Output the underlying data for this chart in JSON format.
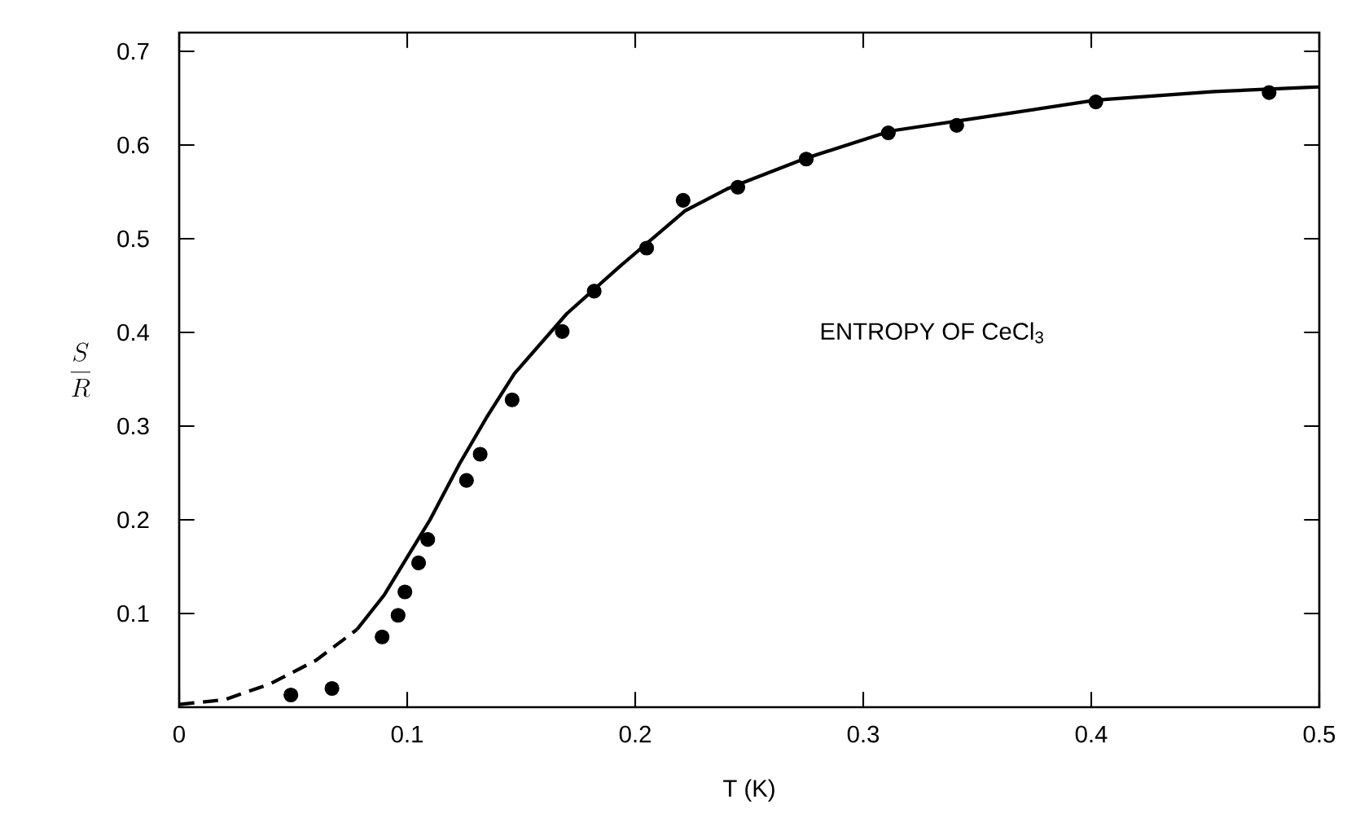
{
  "chart_data": {
    "type": "line",
    "xlabel": "T (K)",
    "ylabel": "\\frac{S}{R}",
    "annotations": [
      "ENTROPY OF CeCl$_{3}$"
    ],
    "xlim": [
      0,
      0.5
    ],
    "ylim": [
      0,
      0.72
    ],
    "xticks": [
      0,
      0.1,
      0.2,
      0.3,
      0.4,
      0.5
    ],
    "yticks": [
      0.1,
      0.2,
      0.3,
      0.4,
      0.5,
      0.6,
      0.7
    ],
    "series": [
      {
        "line_style": "dashed",
        "color": "#000000",
        "x": [
          0,
          0.02,
          0.04,
          0.06,
          0.078
        ],
        "values": [
          0.003,
          0.008,
          0.025,
          0.05,
          0.083
        ]
      },
      {
        "line_style": "solid",
        "color": "#000000",
        "x": [
          0.078,
          0.09,
          0.1,
          0.11,
          0.123,
          0.135,
          0.147,
          0.17,
          0.194,
          0.222,
          0.241,
          0.275,
          0.312,
          0.359,
          0.402,
          0.454,
          0.5
        ],
        "values": [
          0.083,
          0.12,
          0.16,
          0.2,
          0.26,
          0.31,
          0.356,
          0.42,
          0.472,
          0.53,
          0.554,
          0.586,
          0.615,
          0.632,
          0.648,
          0.657,
          0.662
        ]
      },
      {
        "type": "scatter",
        "marker": "circle",
        "color": "#000000",
        "x": [
          0.049,
          0.067,
          0.089,
          0.096,
          0.099,
          0.105,
          0.109,
          0.126,
          0.132,
          0.146,
          0.168,
          0.182,
          0.205,
          0.221,
          0.245,
          0.275,
          0.311,
          0.341,
          0.402,
          0.478
        ],
        "values": [
          0.013,
          0.02,
          0.075,
          0.098,
          0.123,
          0.154,
          0.179,
          0.242,
          0.27,
          0.328,
          0.401,
          0.444,
          0.49,
          0.541,
          0.555,
          0.585,
          0.613,
          0.621,
          0.646,
          0.656
        ]
      }
    ]
  }
}
